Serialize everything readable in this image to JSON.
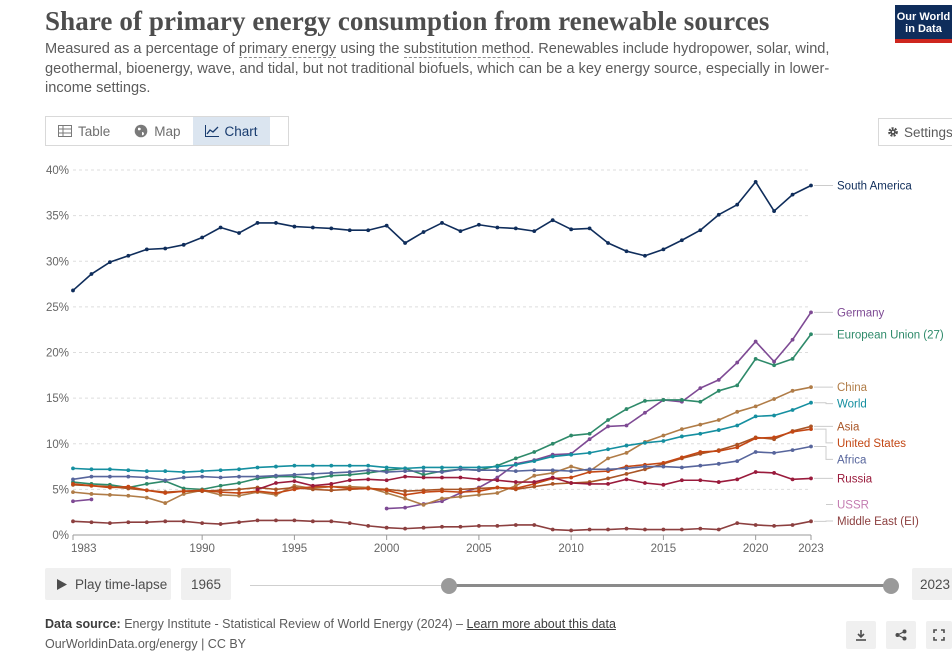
{
  "header": {
    "title": "Share of primary energy consumption from renewable sources",
    "subtitle_parts": [
      "Measured as a percentage of ",
      "primary energy",
      " using the ",
      "substitution method",
      ". Renewables include hydropower, solar, wind, geothermal, bioenergy, wave, and tidal, but not traditional biofuels, which can be a key energy source, especially in lower-income settings."
    ],
    "logo_line1": "Our World",
    "logo_line2": "in Data"
  },
  "tabs": [
    {
      "label": "Table",
      "icon": "table-icon",
      "active": false
    },
    {
      "label": "Map",
      "icon": "globe-icon",
      "active": false
    },
    {
      "label": "Chart",
      "icon": "line-chart-icon",
      "active": true
    }
  ],
  "settings_label": "Settings",
  "timeline": {
    "play_label": "Play time-lapse",
    "start_year": "1965",
    "end_year": "2023",
    "range_min": 1965,
    "range_max": 2023,
    "selected_start": 1983,
    "selected_end": 2023
  },
  "footer": {
    "source_label": "Data source:",
    "source_text": " Energy Institute - Statistical Review of World Energy (2024) – ",
    "learn_more": "Learn more about this data",
    "line2": "OurWorldinData.org/energy | CC BY"
  },
  "chart_data": {
    "type": "line",
    "title": "Share of primary energy consumption from renewable sources",
    "xlim": [
      1983,
      2023
    ],
    "ylim": [
      0,
      40
    ],
    "yticks": [
      0,
      5,
      10,
      15,
      20,
      25,
      30,
      35,
      40
    ],
    "ytick_labels": [
      "0%",
      "5%",
      "10%",
      "15%",
      "20%",
      "25%",
      "30%",
      "35%",
      "40%"
    ],
    "xticks": [
      1983,
      1990,
      1995,
      2000,
      2005,
      2010,
      2015,
      2020,
      2023
    ],
    "xtick_labels": [
      "1983",
      "1990",
      "1995",
      "2000",
      "2005",
      "2010",
      "2015",
      "2020",
      "2023"
    ],
    "grid": "horizontal dashed",
    "legend": "labels at line ends (right)",
    "series": [
      {
        "name": "South America",
        "color": "#0f2d5b",
        "start_year": 1983,
        "values": [
          26.8,
          28.6,
          29.9,
          30.6,
          31.3,
          31.4,
          31.8,
          32.6,
          33.7,
          33.1,
          34.2,
          34.2,
          33.8,
          33.7,
          33.6,
          33.4,
          33.4,
          33.9,
          32.0,
          33.2,
          34.2,
          33.3,
          34.0,
          33.7,
          33.6,
          33.3,
          34.5,
          33.5,
          33.6,
          32.0,
          31.1,
          30.6,
          31.3,
          32.3,
          33.4,
          35.1,
          36.2,
          38.7,
          35.5,
          37.3,
          38.3
        ]
      },
      {
        "name": "Germany",
        "color": "#7e4a94",
        "start_year": 1983,
        "values": [
          3.7,
          3.9,
          null,
          null,
          null,
          null,
          null,
          null,
          null,
          null,
          null,
          null,
          null,
          null,
          null,
          null,
          null,
          2.9,
          3.0,
          3.4,
          3.7,
          4.6,
          5.2,
          6.3,
          7.8,
          8.2,
          8.8,
          8.9,
          10.5,
          11.9,
          12.0,
          13.4,
          14.8,
          14.6,
          16.1,
          17.0,
          18.9,
          21.2,
          19.0,
          21.4,
          24.4
        ]
      },
      {
        "name": "European Union (27)",
        "color": "#2e8a6a",
        "start_year": 1983,
        "values": [
          5.8,
          5.6,
          5.5,
          5.2,
          5.6,
          5.9,
          5.1,
          5.0,
          5.4,
          5.7,
          6.2,
          6.4,
          6.4,
          6.2,
          6.5,
          6.6,
          6.8,
          7.1,
          7.3,
          6.6,
          7.0,
          7.2,
          7.1,
          7.6,
          8.4,
          9.1,
          10.0,
          10.9,
          11.1,
          12.6,
          13.8,
          14.7,
          14.8,
          14.8,
          14.6,
          15.8,
          16.4,
          19.3,
          18.6,
          19.3,
          22.0
        ]
      },
      {
        "name": "China",
        "color": "#b07c47",
        "start_year": 1983,
        "values": [
          4.7,
          4.5,
          4.4,
          4.3,
          4.1,
          3.5,
          4.5,
          4.9,
          4.4,
          4.3,
          4.7,
          4.4,
          5.4,
          5.1,
          5.3,
          5.3,
          5.2,
          4.6,
          4.0,
          3.3,
          4.0,
          4.2,
          4.4,
          4.6,
          5.4,
          6.5,
          6.8,
          7.5,
          7.0,
          8.4,
          9.0,
          10.2,
          10.9,
          11.6,
          12.1,
          12.6,
          13.5,
          14.1,
          14.9,
          15.8,
          16.2
        ]
      },
      {
        "name": "World",
        "color": "#158fa0",
        "start_year": 1983,
        "values": [
          7.3,
          7.2,
          7.2,
          7.1,
          7.0,
          7.0,
          6.9,
          7.0,
          7.1,
          7.2,
          7.4,
          7.5,
          7.6,
          7.6,
          7.6,
          7.6,
          7.6,
          7.4,
          7.3,
          7.4,
          7.4,
          7.4,
          7.4,
          7.5,
          7.7,
          8.1,
          8.6,
          8.8,
          9.0,
          9.4,
          9.8,
          10.1,
          10.3,
          10.8,
          11.1,
          11.5,
          12.0,
          13.0,
          13.1,
          13.7,
          14.5
        ]
      },
      {
        "name": "Asia",
        "color": "#a95526",
        "start_year": 1983,
        "values": [
          5.5,
          5.4,
          5.3,
          5.1,
          4.9,
          4.7,
          4.8,
          4.8,
          4.9,
          5.0,
          5.2,
          5.0,
          5.2,
          5.0,
          4.9,
          5.0,
          5.1,
          5.0,
          4.8,
          4.9,
          5.0,
          5.0,
          5.1,
          5.2,
          5.0,
          5.3,
          5.6,
          5.7,
          5.8,
          6.2,
          6.7,
          7.2,
          7.8,
          8.4,
          8.9,
          9.3,
          9.9,
          10.7,
          10.5,
          11.4,
          11.9
        ]
      },
      {
        "name": "United States",
        "color": "#c34714",
        "start_year": 1983,
        "values": [
          5.6,
          5.4,
          5.2,
          5.3,
          4.9,
          4.6,
          4.8,
          4.9,
          4.7,
          4.6,
          4.8,
          4.6,
          5.0,
          5.3,
          5.3,
          5.1,
          5.1,
          4.9,
          4.4,
          4.7,
          4.8,
          4.7,
          4.8,
          5.2,
          5.1,
          5.6,
          6.2,
          6.3,
          6.9,
          7.0,
          7.5,
          7.7,
          7.9,
          8.5,
          9.1,
          9.2,
          9.6,
          10.6,
          10.7,
          11.3,
          11.6
        ]
      },
      {
        "name": "Africa",
        "color": "#57659c",
        "start_year": 1983,
        "values": [
          6.1,
          6.4,
          6.4,
          6.4,
          6.3,
          6.0,
          6.3,
          6.4,
          6.3,
          6.4,
          6.4,
          6.5,
          6.6,
          6.7,
          6.8,
          6.9,
          7.1,
          6.9,
          7.0,
          7.0,
          6.9,
          7.2,
          7.1,
          7.1,
          7.0,
          7.1,
          7.1,
          7.0,
          7.2,
          7.2,
          7.3,
          7.5,
          7.5,
          7.4,
          7.6,
          7.8,
          8.1,
          9.1,
          9.0,
          9.3,
          9.7
        ]
      },
      {
        "name": "Russia",
        "color": "#9a1b3c",
        "start_year": 1983,
        "values": [
          null,
          null,
          null,
          null,
          null,
          null,
          null,
          null,
          null,
          null,
          5.0,
          5.7,
          5.9,
          5.4,
          5.6,
          6.0,
          6.1,
          6.0,
          6.4,
          6.3,
          6.3,
          6.3,
          6.1,
          6.0,
          5.8,
          5.8,
          6.3,
          5.7,
          5.6,
          5.6,
          6.1,
          5.7,
          5.5,
          6.0,
          6.0,
          5.8,
          6.1,
          6.9,
          6.8,
          6.1,
          6.2
        ]
      },
      {
        "name": "USSR",
        "color": "#c47cb1",
        "start_year": 1983,
        "values": [
          null,
          null,
          null,
          null,
          null,
          null,
          null,
          null,
          null,
          null,
          null,
          null,
          null,
          null,
          null,
          null,
          null,
          null,
          null,
          null,
          null,
          null,
          null,
          null,
          null,
          null,
          null,
          null,
          null,
          null,
          null,
          null,
          null,
          null,
          null,
          null,
          null,
          null,
          null,
          null,
          null
        ]
      },
      {
        "name": "Middle East (EI)",
        "color": "#8c3f3f",
        "start_year": 1983,
        "values": [
          1.5,
          1.4,
          1.3,
          1.4,
          1.4,
          1.5,
          1.5,
          1.3,
          1.2,
          1.4,
          1.6,
          1.6,
          1.6,
          1.5,
          1.5,
          1.3,
          1.0,
          0.8,
          0.7,
          0.8,
          0.9,
          0.9,
          1.0,
          1.0,
          1.1,
          1.1,
          0.6,
          0.5,
          0.6,
          0.6,
          0.7,
          0.6,
          0.6,
          0.6,
          0.7,
          0.6,
          1.3,
          1.1,
          1.0,
          1.1,
          1.5
        ]
      }
    ]
  }
}
